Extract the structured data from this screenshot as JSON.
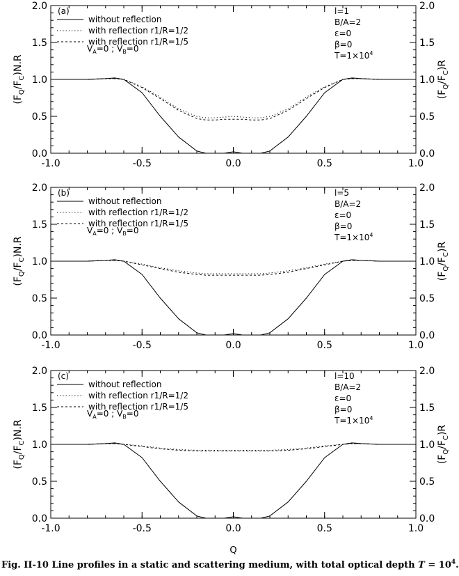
{
  "figure": {
    "caption": "Fig. II-10 Line profiles in a static and scattering medium, with total optical depth T = 10^4.",
    "xlabel": "Q",
    "ylabel_left": "(FQ/FC)N.R",
    "ylabel_right": "(FQ/FC)R"
  },
  "chart_data": [
    {
      "panel": "(a)",
      "type": "line",
      "xlim": [
        -1.0,
        1.0
      ],
      "ylim": [
        0.0,
        2.0
      ],
      "xticks": [
        "-1.0",
        "-0.5",
        "0.0",
        "0.5",
        "1.0"
      ],
      "yticks": [
        "0.0",
        "0.5",
        "1.0",
        "1.5",
        "2.0"
      ],
      "legend": [
        "without reflection",
        "with reflection r1/R=1/2",
        "with reflection r1/R=1/5"
      ],
      "annotation_left": "VA=0 ; VB=0",
      "params": [
        "l=1",
        "B/A=2",
        "ε=0",
        "β=0",
        "T=1×10^4"
      ],
      "x": [
        -1.0,
        -0.9,
        -0.8,
        -0.7,
        -0.65,
        -0.6,
        -0.5,
        -0.4,
        -0.3,
        -0.2,
        -0.15,
        -0.1,
        -0.05,
        0.0,
        0.05,
        0.1,
        0.15,
        0.2,
        0.3,
        0.4,
        0.5,
        0.6,
        0.65,
        0.7,
        0.8,
        0.9,
        1.0
      ],
      "series": [
        {
          "name": "without reflection",
          "style": "solid",
          "values": [
            1.0,
            1.0,
            1.0,
            1.01,
            1.02,
            1.0,
            0.82,
            0.5,
            0.22,
            0.03,
            0.0,
            0.0,
            0.0,
            0.02,
            0.0,
            0.0,
            0.0,
            0.03,
            0.22,
            0.5,
            0.82,
            1.0,
            1.02,
            1.01,
            1.0,
            1.0,
            1.0
          ]
        },
        {
          "name": "with reflection r1/R=1/2",
          "style": "dotted",
          "values": [
            1.0,
            1.0,
            1.0,
            1.01,
            1.01,
            1.0,
            0.9,
            0.76,
            0.6,
            0.5,
            0.48,
            0.48,
            0.49,
            0.5,
            0.49,
            0.48,
            0.48,
            0.5,
            0.6,
            0.76,
            0.9,
            1.0,
            1.01,
            1.01,
            1.0,
            1.0,
            1.0
          ]
        },
        {
          "name": "with reflection r1/R=1/5",
          "style": "dashed",
          "values": [
            1.0,
            1.0,
            1.0,
            1.01,
            1.01,
            1.0,
            0.89,
            0.74,
            0.58,
            0.47,
            0.45,
            0.45,
            0.46,
            0.46,
            0.46,
            0.45,
            0.45,
            0.47,
            0.58,
            0.74,
            0.89,
            1.0,
            1.01,
            1.01,
            1.0,
            1.0,
            1.0
          ]
        }
      ]
    },
    {
      "panel": "(b)",
      "type": "line",
      "xlim": [
        -1.0,
        1.0
      ],
      "ylim": [
        0.0,
        2.0
      ],
      "xticks": [
        "-1.0",
        "-0.5",
        "0.0",
        "0.5",
        "1.0"
      ],
      "yticks": [
        "0.0",
        "0.5",
        "1.0",
        "1.5",
        "2.0"
      ],
      "legend": [
        "without reflection",
        "with reflection r1/R=1/2",
        "with reflection r1/R=1/5"
      ],
      "annotation_left": "VA=0 ; VB=0",
      "params": [
        "l=5",
        "B/A=2",
        "ε=0",
        "β=0",
        "T=1×10^4"
      ],
      "x": [
        -1.0,
        -0.9,
        -0.8,
        -0.7,
        -0.65,
        -0.6,
        -0.5,
        -0.4,
        -0.3,
        -0.2,
        -0.15,
        -0.1,
        -0.05,
        0.0,
        0.05,
        0.1,
        0.15,
        0.2,
        0.3,
        0.4,
        0.5,
        0.6,
        0.65,
        0.7,
        0.8,
        0.9,
        1.0
      ],
      "series": [
        {
          "name": "without reflection",
          "style": "solid",
          "values": [
            1.0,
            1.0,
            1.0,
            1.01,
            1.02,
            1.0,
            0.82,
            0.5,
            0.22,
            0.03,
            0.0,
            0.0,
            0.0,
            0.02,
            0.0,
            0.0,
            0.0,
            0.03,
            0.22,
            0.5,
            0.82,
            1.0,
            1.02,
            1.01,
            1.0,
            1.0,
            1.0
          ]
        },
        {
          "name": "with reflection r1/R=1/2",
          "style": "dotted",
          "values": [
            1.0,
            1.0,
            1.0,
            1.01,
            1.01,
            1.0,
            0.96,
            0.91,
            0.87,
            0.84,
            0.83,
            0.83,
            0.83,
            0.83,
            0.83,
            0.83,
            0.83,
            0.84,
            0.87,
            0.91,
            0.96,
            1.0,
            1.01,
            1.01,
            1.0,
            1.0,
            1.0
          ]
        },
        {
          "name": "with reflection r1/R=1/5",
          "style": "dashed",
          "values": [
            1.0,
            1.0,
            1.0,
            1.01,
            1.01,
            1.0,
            0.95,
            0.9,
            0.85,
            0.82,
            0.81,
            0.81,
            0.81,
            0.81,
            0.81,
            0.81,
            0.81,
            0.82,
            0.85,
            0.9,
            0.95,
            1.0,
            1.01,
            1.01,
            1.0,
            1.0,
            1.0
          ]
        }
      ]
    },
    {
      "panel": "(c)",
      "type": "line",
      "xlim": [
        -1.0,
        1.0
      ],
      "ylim": [
        0.0,
        2.0
      ],
      "xticks": [
        "-1.0",
        "-0.5",
        "0.0",
        "0.5",
        "1.0"
      ],
      "yticks": [
        "0.0",
        "0.5",
        "1.0",
        "1.5",
        "2.0"
      ],
      "legend": [
        "without reflection",
        "with reflection r1/R=1/2",
        "with reflection r1/R=1/5"
      ],
      "annotation_left": "VA=0 ; VB=0",
      "params": [
        "l=10",
        "B/A=2",
        "ε=0",
        "β=0",
        "T=1×10^4"
      ],
      "x": [
        -1.0,
        -0.9,
        -0.8,
        -0.7,
        -0.65,
        -0.6,
        -0.5,
        -0.4,
        -0.3,
        -0.2,
        -0.15,
        -0.1,
        -0.05,
        0.0,
        0.05,
        0.1,
        0.15,
        0.2,
        0.3,
        0.4,
        0.5,
        0.6,
        0.65,
        0.7,
        0.8,
        0.9,
        1.0
      ],
      "series": [
        {
          "name": "without reflection",
          "style": "solid",
          "values": [
            1.0,
            1.0,
            1.0,
            1.01,
            1.02,
            1.0,
            0.82,
            0.5,
            0.22,
            0.03,
            0.0,
            0.0,
            0.0,
            0.02,
            0.0,
            0.0,
            0.0,
            0.03,
            0.22,
            0.5,
            0.82,
            1.0,
            1.02,
            1.01,
            1.0,
            1.0,
            1.0
          ]
        },
        {
          "name": "with reflection r1/R=1/2",
          "style": "dotted",
          "values": [
            1.0,
            1.0,
            1.0,
            1.01,
            1.01,
            1.0,
            0.98,
            0.95,
            0.93,
            0.92,
            0.92,
            0.92,
            0.92,
            0.92,
            0.92,
            0.92,
            0.92,
            0.92,
            0.93,
            0.95,
            0.98,
            1.0,
            1.01,
            1.01,
            1.0,
            1.0,
            1.0
          ]
        },
        {
          "name": "with reflection r1/R=1/5",
          "style": "dashed",
          "values": [
            1.0,
            1.0,
            1.0,
            1.01,
            1.01,
            1.0,
            0.97,
            0.94,
            0.92,
            0.91,
            0.91,
            0.91,
            0.91,
            0.91,
            0.91,
            0.91,
            0.91,
            0.91,
            0.92,
            0.94,
            0.97,
            1.0,
            1.01,
            1.01,
            1.0,
            1.0,
            1.0
          ]
        }
      ]
    }
  ]
}
